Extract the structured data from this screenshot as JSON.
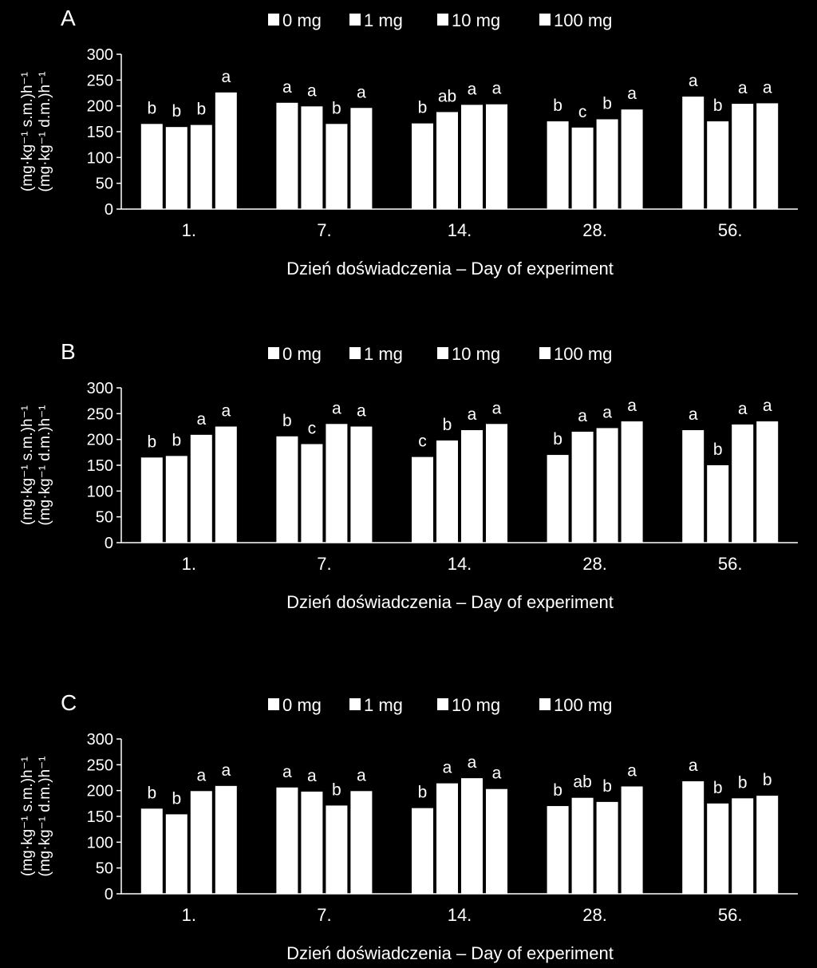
{
  "chart_data": [
    {
      "type": "bar",
      "panel_label": "A",
      "categories": [
        "1.",
        "7.",
        "14.",
        "28.",
        "56."
      ],
      "series": [
        {
          "name": "0 mg",
          "values": [
            165,
            206,
            166,
            170,
            218
          ],
          "letters": [
            "b",
            "a",
            "b",
            "b",
            "a"
          ]
        },
        {
          "name": "1 mg",
          "values": [
            159,
            199,
            188,
            158,
            170
          ],
          "letters": [
            "b",
            "a",
            "ab",
            "c",
            "b"
          ]
        },
        {
          "name": "10 mg",
          "values": [
            163,
            165,
            202,
            174,
            204
          ],
          "letters": [
            "b",
            "b",
            "a",
            "b",
            "a"
          ]
        },
        {
          "name": "100 mg",
          "values": [
            226,
            196,
            203,
            193,
            205
          ],
          "letters": [
            "a",
            "a",
            "a",
            "a",
            "a"
          ]
        }
      ],
      "xlabel": "Dzień doświadczenia – Day of experiment",
      "ylabel_lines": [
        "(mg·kg⁻¹ d.m.)h⁻¹",
        "(mg·kg⁻¹ s.m.)h⁻¹"
      ],
      "yticks": [
        "0",
        "50",
        "100",
        "150",
        "200",
        "250",
        "300"
      ],
      "ylim": [
        0,
        300
      ],
      "legend_position": "top",
      "grid": false,
      "bar_color": "#ffffff"
    },
    {
      "type": "bar",
      "panel_label": "B",
      "categories": [
        "1.",
        "7.",
        "14.",
        "28.",
        "56."
      ],
      "series": [
        {
          "name": "0 mg",
          "values": [
            165,
            206,
            166,
            170,
            218
          ],
          "letters": [
            "b",
            "b",
            "c",
            "b",
            "a"
          ]
        },
        {
          "name": "1 mg",
          "values": [
            168,
            191,
            198,
            215,
            150
          ],
          "letters": [
            "b",
            "c",
            "b",
            "a",
            "b"
          ]
        },
        {
          "name": "10 mg",
          "values": [
            209,
            230,
            218,
            222,
            229
          ],
          "letters": [
            "a",
            "a",
            "a",
            "a",
            "a"
          ]
        },
        {
          "name": "100 mg",
          "values": [
            225,
            225,
            230,
            235,
            235
          ],
          "letters": [
            "a",
            "a",
            "a",
            "a",
            "a"
          ]
        }
      ],
      "xlabel": "Dzień doświadczenia – Day of experiment",
      "ylabel_lines": [
        "(mg·kg⁻¹ d.m.)h⁻¹",
        "(mg·kg⁻¹ s.m.)h⁻¹"
      ],
      "yticks": [
        "0",
        "50",
        "100",
        "150",
        "200",
        "250",
        "300"
      ],
      "ylim": [
        0,
        300
      ],
      "legend_position": "top",
      "grid": false,
      "bar_color": "#ffffff"
    },
    {
      "type": "bar",
      "panel_label": "C",
      "categories": [
        "1.",
        "7.",
        "14.",
        "28.",
        "56."
      ],
      "series": [
        {
          "name": "0 mg",
          "values": [
            165,
            206,
            166,
            170,
            218
          ],
          "letters": [
            "b",
            "a",
            "b",
            "b",
            "a"
          ]
        },
        {
          "name": "1 mg",
          "values": [
            154,
            198,
            214,
            186,
            175
          ],
          "letters": [
            "b",
            "a",
            "a",
            "ab",
            "b"
          ]
        },
        {
          "name": "10 mg",
          "values": [
            199,
            171,
            224,
            178,
            185
          ],
          "letters": [
            "a",
            "b",
            "a",
            "b",
            "b"
          ]
        },
        {
          "name": "100 mg",
          "values": [
            209,
            199,
            203,
            208,
            190
          ],
          "letters": [
            "a",
            "a",
            "a",
            "a",
            "b"
          ]
        }
      ],
      "xlabel": "Dzień doświadczenia – Day of experiment",
      "ylabel_lines": [
        "(mg·kg⁻¹ d.m.)h⁻¹",
        "(mg·kg⁻¹ s.m.)h⁻¹"
      ],
      "yticks": [
        "0",
        "50",
        "100",
        "150",
        "200",
        "250",
        "300"
      ],
      "ylim": [
        0,
        300
      ],
      "legend_position": "top",
      "grid": false,
      "bar_color": "#ffffff"
    }
  ]
}
